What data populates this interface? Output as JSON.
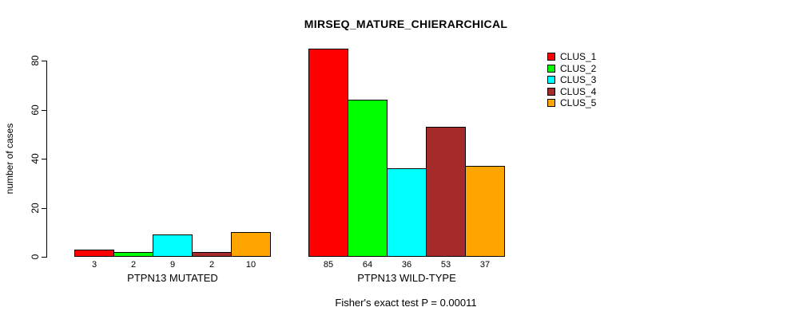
{
  "chart_data": {
    "type": "bar",
    "title": "MIRSEQ_MATURE_CHIERARCHICAL",
    "ylabel": "number of cases",
    "xlabel": "",
    "caption": "Fisher's exact test P = 0.00011",
    "ylim": [
      0,
      80
    ],
    "yticks": [
      0,
      20,
      40,
      60,
      80
    ],
    "grid": false,
    "legend_position": "top-right",
    "series": [
      {
        "name": "CLUS_1",
        "color": "#FF0000"
      },
      {
        "name": "CLUS_2",
        "color": "#00FF00"
      },
      {
        "name": "CLUS_3",
        "color": "#00FFFF"
      },
      {
        "name": "CLUS_4",
        "color": "#A52A2A"
      },
      {
        "name": "CLUS_5",
        "color": "#FFA500"
      }
    ],
    "groups": [
      {
        "label": "PTPN13 MUTATED",
        "values": [
          3,
          2,
          9,
          2,
          10
        ]
      },
      {
        "label": "PTPN13 WILD-TYPE",
        "values": [
          85,
          64,
          36,
          53,
          37
        ]
      }
    ]
  }
}
